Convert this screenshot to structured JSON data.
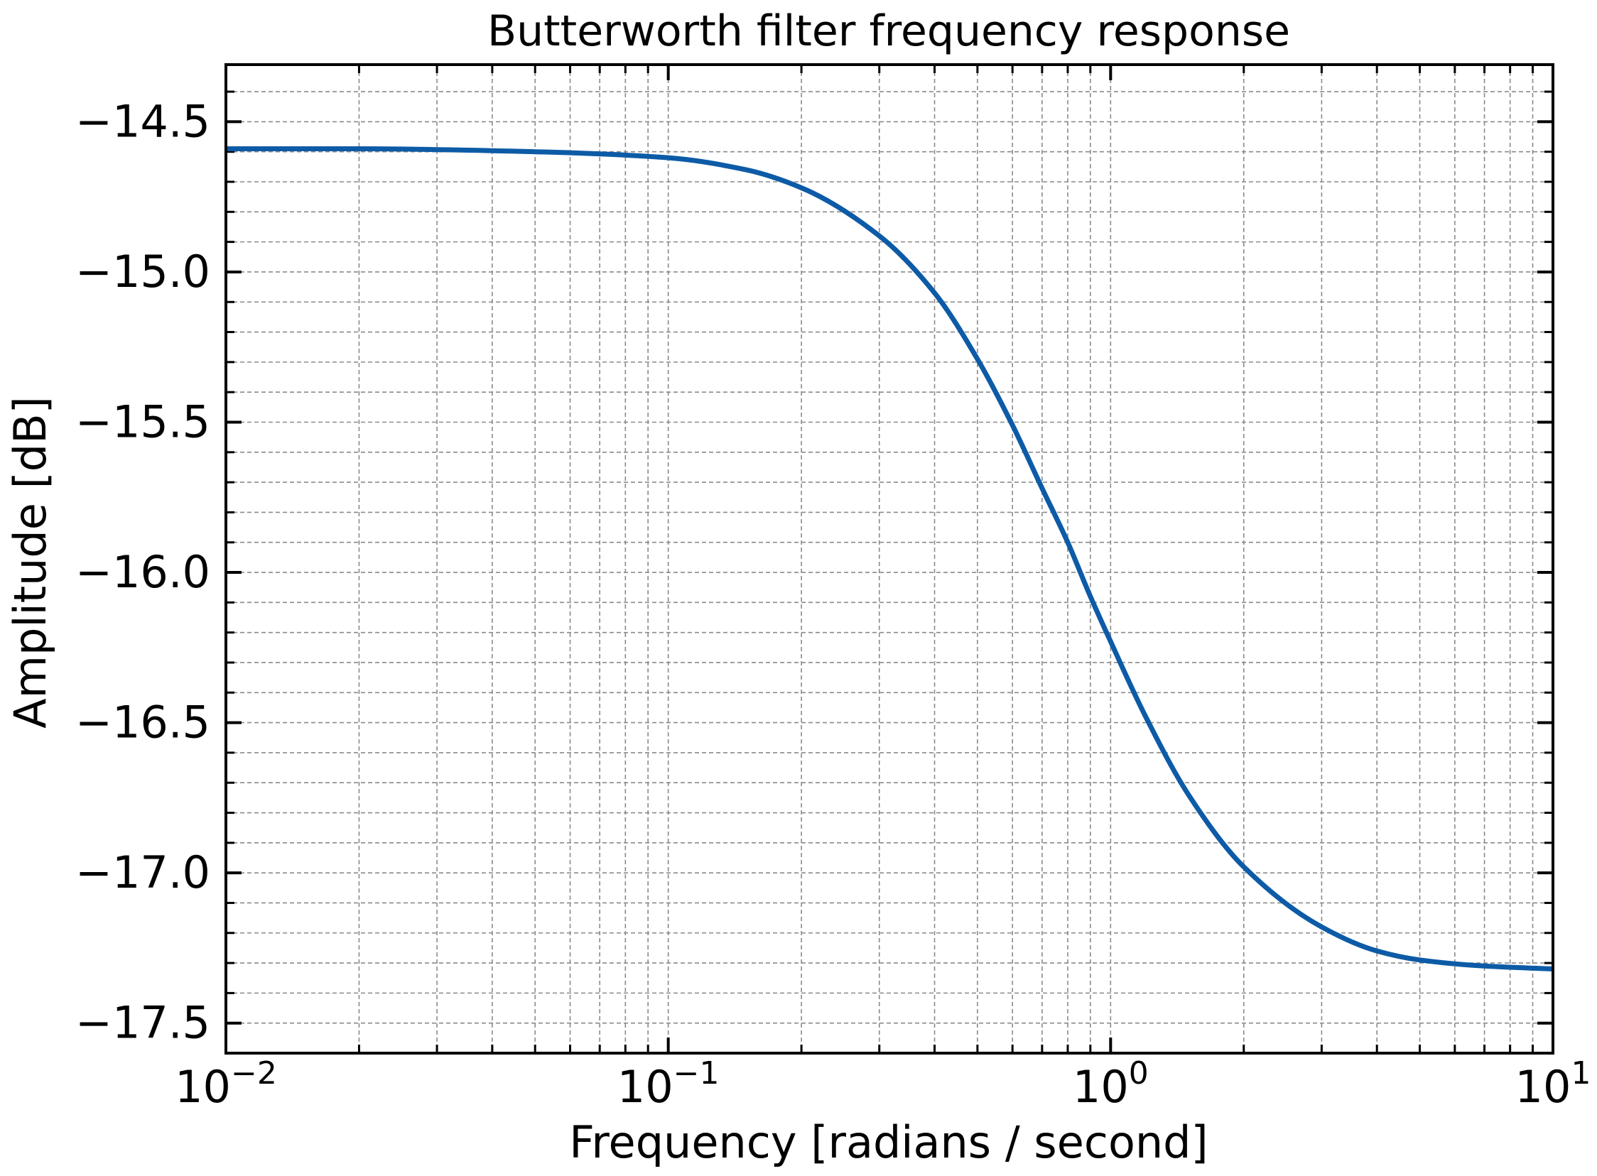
{
  "chart_data": {
    "type": "line",
    "title": "Butterworth filter frequency response",
    "xlabel": "Frequency [radians / second]",
    "ylabel": "Amplitude [dB]",
    "x_scale": "log",
    "xlim": [
      0.01,
      10
    ],
    "ylim": [
      -17.6,
      -14.31
    ],
    "grid": true,
    "x_ticks": [
      {
        "value": 0.01,
        "base": "10",
        "exponent": "−2"
      },
      {
        "value": 0.1,
        "base": "10",
        "exponent": "−1"
      },
      {
        "value": 1,
        "base": "10",
        "exponent": "0"
      },
      {
        "value": 10,
        "base": "10",
        "exponent": "1"
      }
    ],
    "y_ticks": [
      {
        "value": -14.5,
        "label": "−14.5"
      },
      {
        "value": -15.0,
        "label": "−15.0"
      },
      {
        "value": -15.5,
        "label": "−15.5"
      },
      {
        "value": -16.0,
        "label": "−16.0"
      },
      {
        "value": -16.5,
        "label": "−16.5"
      },
      {
        "value": -17.0,
        "label": "−17.0"
      },
      {
        "value": -17.5,
        "label": "−17.5"
      }
    ],
    "series": [
      {
        "color": "#0d5ba6",
        "x": [
          0.01,
          0.02,
          0.05,
          0.1,
          0.15,
          0.2,
          0.3,
          0.4,
          0.5,
          0.6,
          0.7,
          0.8,
          0.9,
          1.0,
          1.2,
          1.5,
          2.0,
          3.0,
          4.0,
          5.0,
          7.0,
          10.0
        ],
        "y": [
          -14.59,
          -14.59,
          -14.6,
          -14.62,
          -14.66,
          -14.72,
          -14.88,
          -15.07,
          -15.29,
          -15.51,
          -15.72,
          -15.9,
          -16.08,
          -16.23,
          -16.48,
          -16.74,
          -16.98,
          -17.18,
          -17.26,
          -17.29,
          -17.31,
          -17.32
        ]
      }
    ]
  }
}
